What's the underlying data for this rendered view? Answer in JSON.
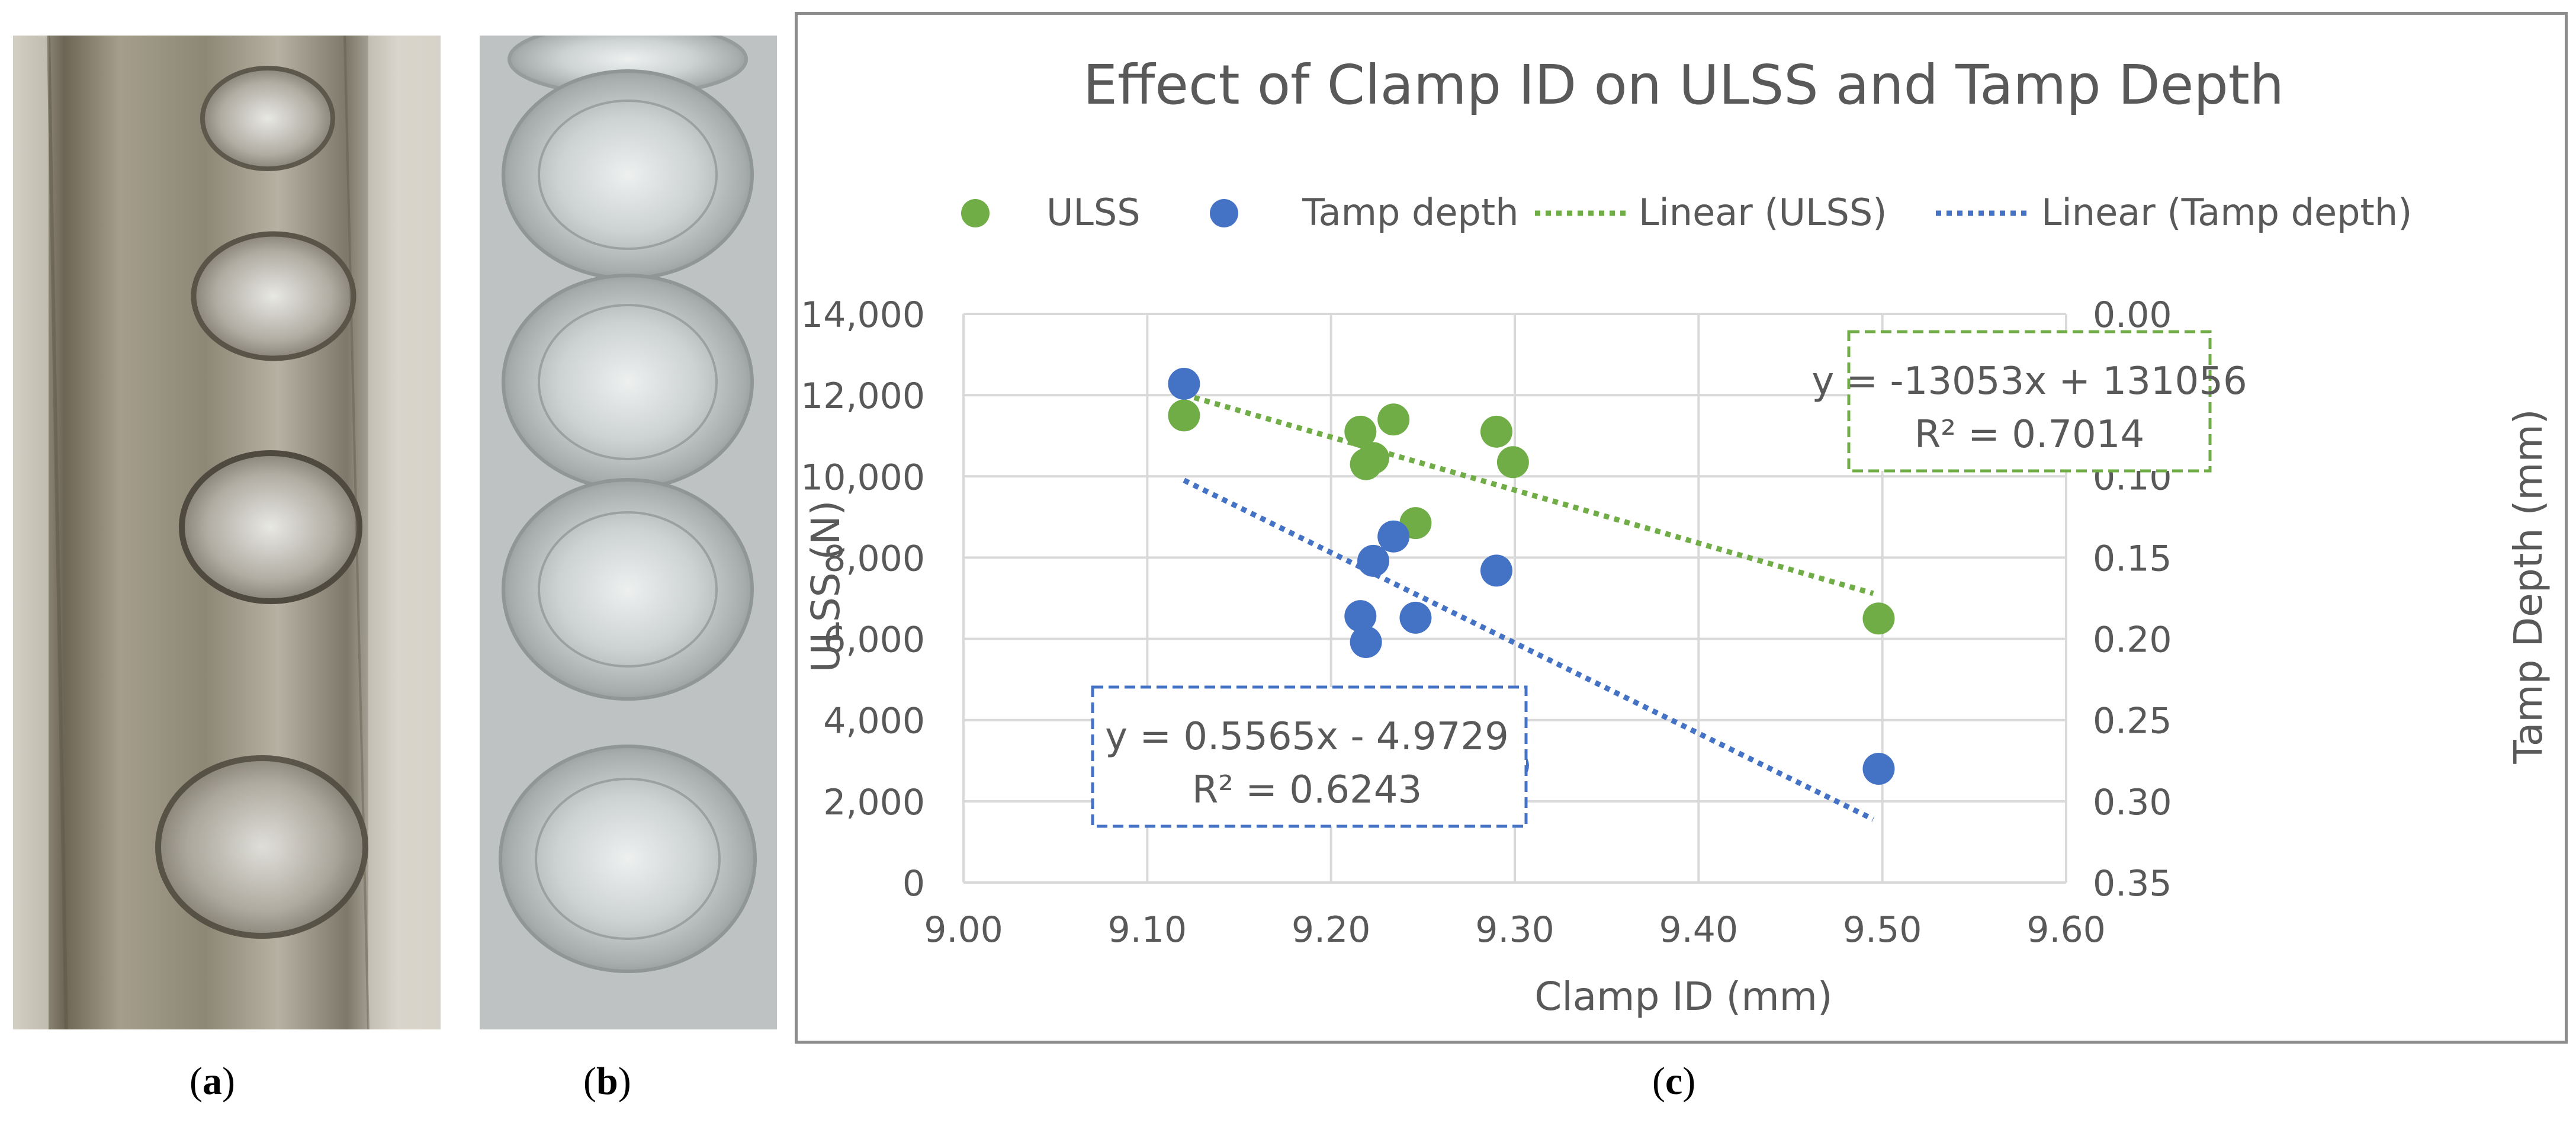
{
  "panels": {
    "a": {
      "open": "(",
      "letter": "a",
      "close": ")"
    },
    "b": {
      "open": "(",
      "letter": "b",
      "close": ")"
    },
    "c": {
      "open": "(",
      "letter": "c",
      "close": ")"
    }
  },
  "colors": {
    "ulss": "#70ad47",
    "tamp": "#4472c4",
    "grid": "#d9d9d9",
    "text": "#595959"
  },
  "chart_data": {
    "type": "scatter",
    "title": "Effect of Clamp ID on ULSS and Tamp Depth",
    "xlabel": "Clamp ID (mm)",
    "ylabel": "ULSS (N)",
    "y2label": "Tamp Depth (mm)",
    "xlim": [
      9.0,
      9.6
    ],
    "ylim": [
      0,
      14000
    ],
    "y2lim": [
      0.35,
      0.0
    ],
    "x_ticks": [
      "9.00",
      "9.10",
      "9.20",
      "9.30",
      "9.40",
      "9.50",
      "9.60"
    ],
    "y_ticks": [
      "0",
      "2,000",
      "4,000",
      "6,000",
      "8,000",
      "10,000",
      "12,000",
      "14,000"
    ],
    "y2_ticks": [
      "0.35",
      "0.30",
      "0.25",
      "0.20",
      "0.15",
      "0.10",
      "0.05",
      "0.00"
    ],
    "grid": true,
    "legend_position": "top",
    "legend": [
      "ULSS",
      "Tamp depth",
      "Linear (ULSS)",
      "Linear (Tamp depth)"
    ],
    "series": [
      {
        "name": "ULSS",
        "axis": "left",
        "marker": "circle",
        "color": "#70ad47",
        "x": [
          9.12,
          9.216,
          9.219,
          9.223,
          9.234,
          9.246,
          9.29,
          9.299,
          9.498
        ],
        "y": [
          11500,
          11100,
          10300,
          10450,
          11400,
          8850,
          11100,
          10350,
          6500
        ]
      },
      {
        "name": "Tamp depth",
        "axis": "right",
        "marker": "circle",
        "color": "#4472c4",
        "x": [
          9.12,
          9.216,
          9.219,
          9.223,
          9.234,
          9.246,
          9.29,
          9.299,
          9.498
        ],
        "y": [
          0.043,
          0.186,
          0.202,
          0.152,
          0.137,
          0.187,
          0.158,
          0.278,
          0.28
        ]
      }
    ],
    "trendlines": [
      {
        "name": "Linear (ULSS)",
        "series": "ULSS",
        "axis": "left",
        "style": "dotted",
        "slope": -13053,
        "intercept": 131056,
        "x_range": [
          9.12,
          9.495
        ],
        "equation": "y = -13053x + 131056",
        "r2": "R² = 0.7014"
      },
      {
        "name": "Linear (Tamp depth)",
        "series": "Tamp depth",
        "axis": "right",
        "style": "dotted",
        "slope": 0.5565,
        "intercept": -4.9729,
        "x_range": [
          9.12,
          9.495
        ],
        "equation": "y = 0.5565x - 4.9729",
        "r2": "R² = 0.6243"
      }
    ]
  }
}
